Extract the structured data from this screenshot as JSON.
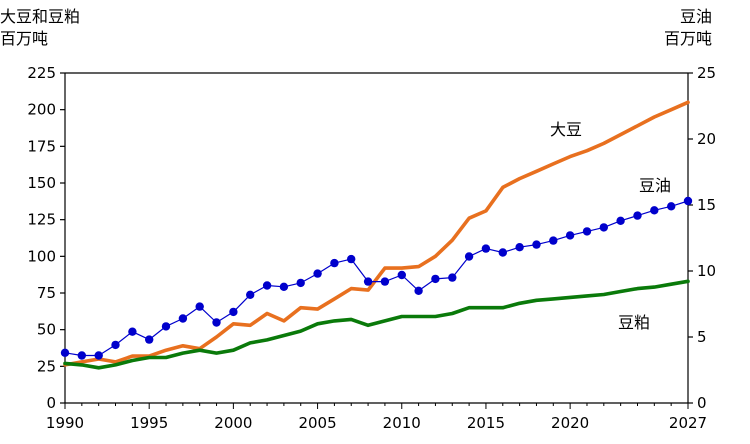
{
  "chart_data": {
    "type": "line",
    "left_axis_label_line1": "大豆和豆粕",
    "left_axis_label_line2": "百万吨",
    "right_axis_label_line1": "豆油",
    "right_axis_label_line2": "百万吨",
    "x": [
      1990,
      1991,
      1992,
      1993,
      1994,
      1995,
      1996,
      1997,
      1998,
      1999,
      2000,
      2001,
      2002,
      2003,
      2004,
      2005,
      2006,
      2007,
      2008,
      2009,
      2010,
      2011,
      2012,
      2013,
      2014,
      2015,
      2016,
      2017,
      2018,
      2019,
      2020,
      2021,
      2022,
      2023,
      2024,
      2025,
      2026,
      2027
    ],
    "x_ticks": [
      "1990",
      "1995",
      "2000",
      "2005",
      "2010",
      "2015",
      "2020",
      "2027"
    ],
    "x_tick_values": [
      1990,
      1995,
      2000,
      2005,
      2010,
      2015,
      2020,
      2027
    ],
    "xlim": [
      1990,
      2027
    ],
    "y_left_ticks": [
      "0",
      "25",
      "50",
      "75",
      "100",
      "125",
      "150",
      "175",
      "200",
      "225"
    ],
    "y_left_tick_values": [
      0,
      25,
      50,
      75,
      100,
      125,
      150,
      175,
      200,
      225
    ],
    "ylim_left": [
      0,
      225
    ],
    "y_right_ticks": [
      "0",
      "5",
      "10",
      "15",
      "20",
      "25"
    ],
    "y_right_tick_values": [
      0,
      5,
      10,
      15,
      20,
      25
    ],
    "ylim_right": [
      0,
      25
    ],
    "series": [
      {
        "name": "大豆",
        "axis": "left",
        "color": "#e8701f",
        "markers": false,
        "values": [
          26,
          28,
          30,
          28,
          32,
          32,
          36,
          39,
          37,
          45,
          54,
          53,
          61,
          56,
          65,
          64,
          71,
          78,
          77,
          92,
          92,
          93,
          100,
          111,
          126,
          131,
          147,
          153,
          158,
          163,
          168,
          172,
          177,
          183,
          189,
          195,
          200,
          205
        ]
      },
      {
        "name": "豆油",
        "axis": "right",
        "color": "#0000cc",
        "markers": true,
        "values": [
          3.8,
          3.6,
          3.6,
          4.4,
          5.4,
          4.8,
          5.8,
          6.4,
          7.3,
          6.1,
          6.9,
          8.2,
          8.9,
          8.8,
          9.1,
          9.8,
          10.6,
          10.9,
          9.2,
          9.2,
          9.7,
          8.5,
          9.4,
          9.5,
          11.1,
          11.7,
          11.4,
          11.8,
          12.0,
          12.3,
          12.7,
          13.0,
          13.3,
          13.8,
          14.2,
          14.6,
          14.9,
          15.3
        ]
      },
      {
        "name": "豆粕",
        "axis": "left",
        "color": "#0a7a0a",
        "markers": false,
        "values": [
          27,
          26,
          24,
          26,
          29,
          31,
          31,
          34,
          36,
          34,
          36,
          41,
          43,
          46,
          49,
          54,
          56,
          57,
          53,
          56,
          59,
          59,
          59,
          61,
          65,
          65,
          65,
          68,
          70,
          71,
          72,
          73,
          74,
          76,
          78,
          79,
          81,
          83
        ]
      }
    ]
  }
}
